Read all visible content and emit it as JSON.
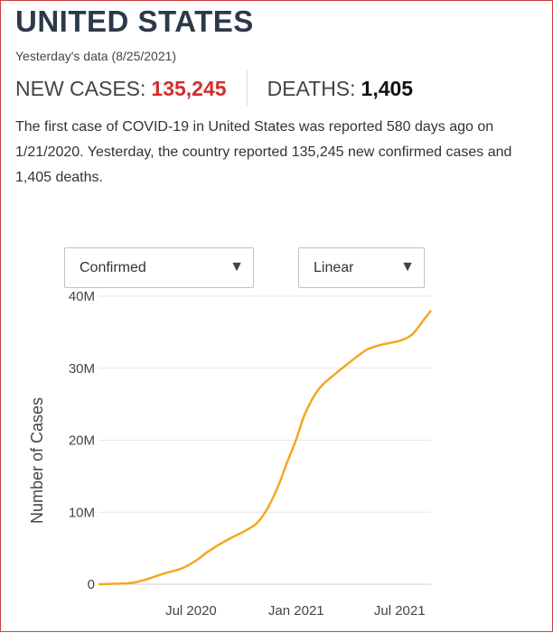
{
  "header": {
    "title": "UNITED STATES",
    "subtitle": "Yesterday's data (8/25/2021)"
  },
  "stats": {
    "new_cases_label": "NEW CASES:",
    "new_cases_value": "135,245",
    "deaths_label": "DEATHS:",
    "deaths_value": "1,405"
  },
  "description": {
    "text": "The first case of COVID-19 in United States was reported 580 days ago on 1/21/2020. Yesterday, the country reported 135,245 new confirmed cases and 1,405 deaths."
  },
  "controls": {
    "metric_select": "Confirmed",
    "scale_select": "Linear"
  },
  "colors": {
    "line": "#f5a623",
    "accent_red": "#d62d2d"
  },
  "chart_data": {
    "type": "line",
    "title": "",
    "xlabel": "",
    "ylabel": "Number of Cases",
    "xlim": [
      "2020-01-21",
      "2021-08-25"
    ],
    "ylim": [
      0,
      40000000
    ],
    "y_ticks": [
      0,
      10000000,
      20000000,
      30000000,
      40000000
    ],
    "y_tick_labels": [
      "0",
      "10M",
      "20M",
      "30M",
      "40M"
    ],
    "x_ticks": [
      "2020-07-01",
      "2021-01-01",
      "2021-07-01"
    ],
    "x_tick_labels": [
      "Jul 2020",
      "Jan 2021",
      "Jul 2021"
    ],
    "grid": "horizontal",
    "series": [
      {
        "x": [
          "2020-01-21",
          "2020-03-01",
          "2020-03-21",
          "2020-04-15",
          "2020-05-15",
          "2020-06-15",
          "2020-07-10",
          "2020-08-01",
          "2020-09-01",
          "2020-10-01",
          "2020-10-20",
          "2020-11-01",
          "2020-11-15",
          "2020-12-01",
          "2020-12-15",
          "2021-01-01",
          "2021-01-15",
          "2021-02-01",
          "2021-02-15",
          "2021-03-01",
          "2021-04-01",
          "2021-05-01",
          "2021-05-15",
          "2021-06-01",
          "2021-07-01",
          "2021-07-20",
          "2021-08-01",
          "2021-08-15",
          "2021-08-25"
        ],
        "y": [
          0,
          100000,
          200000,
          700000,
          1500000,
          2200000,
          3300000,
          4600000,
          6100000,
          7300000,
          8200000,
          9200000,
          11000000,
          13700000,
          16700000,
          20100000,
          23400000,
          26100000,
          27600000,
          28600000,
          30600000,
          32400000,
          32900000,
          33300000,
          33800000,
          34500000,
          35500000,
          37000000,
          38000000
        ]
      }
    ]
  }
}
